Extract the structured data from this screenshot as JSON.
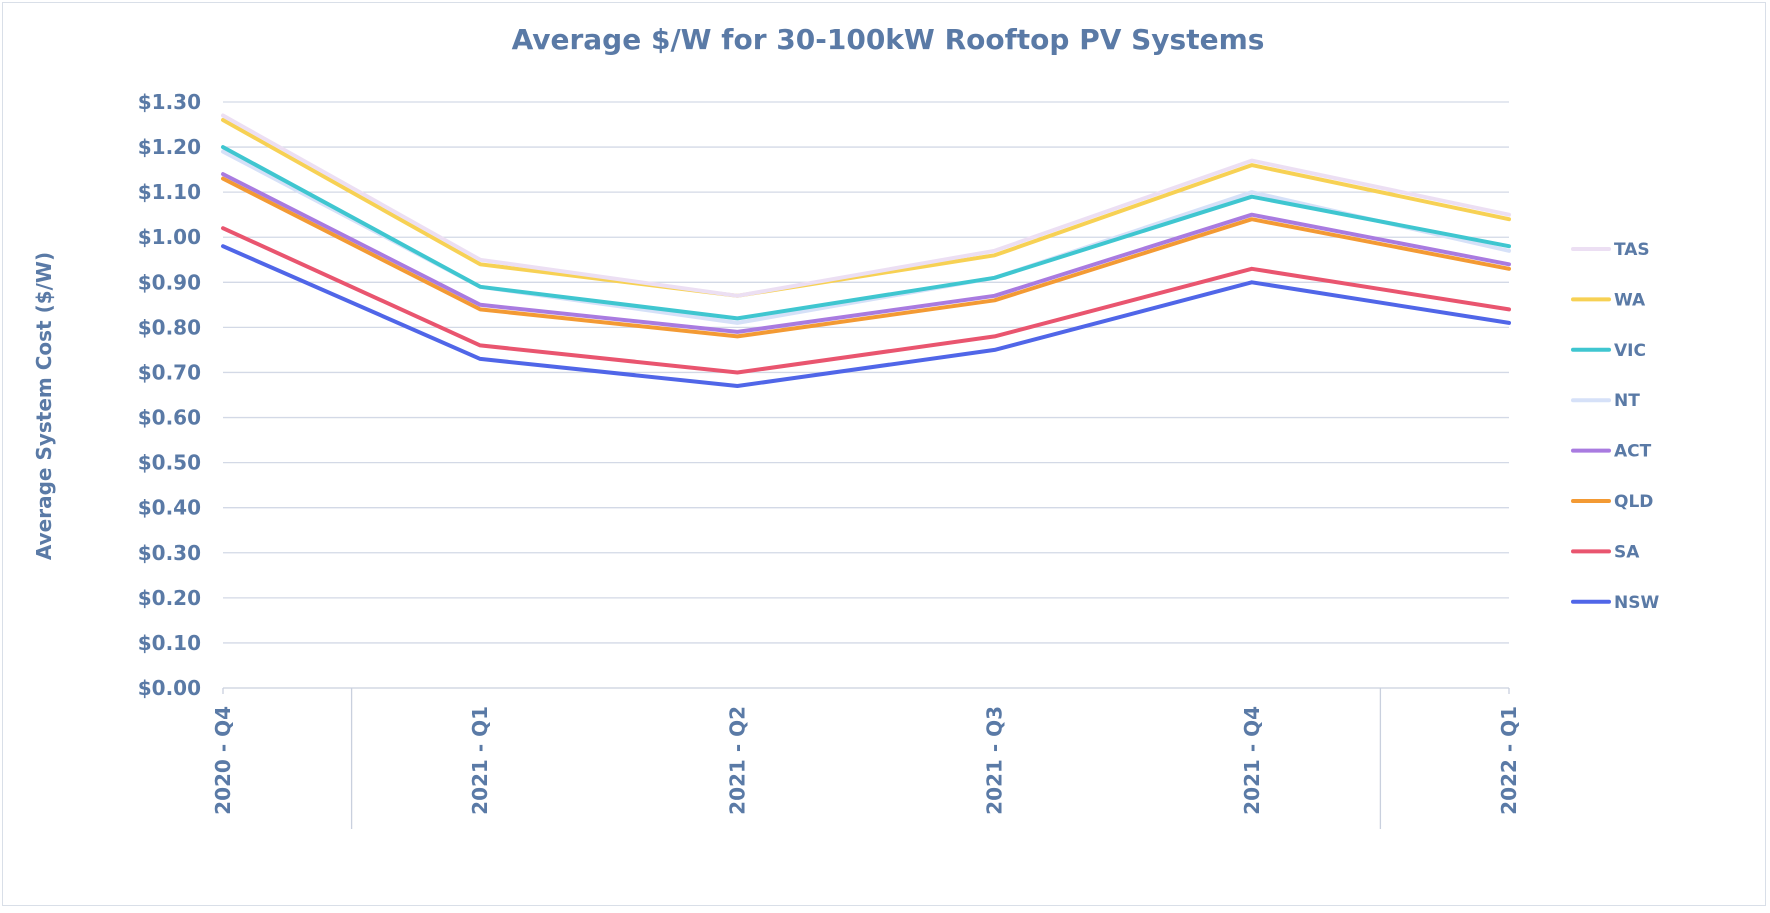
{
  "chart_data": {
    "type": "line",
    "title": "Average $/W for 30-100kW Rooftop PV Systems",
    "ylabel": "Average System Cost ($/W)",
    "xlabel": "",
    "categories": [
      "2020 - Q4",
      "2021 - Q1",
      "2021 - Q2",
      "2021 - Q3",
      "2021 - Q4",
      "2022 - Q1"
    ],
    "ylim": [
      0,
      1.3
    ],
    "yticks": [
      {
        "value": 0.0,
        "label": "$0.00"
      },
      {
        "value": 0.1,
        "label": "$0.10"
      },
      {
        "value": 0.2,
        "label": "$0.20"
      },
      {
        "value": 0.3,
        "label": "$0.30"
      },
      {
        "value": 0.4,
        "label": "$0.40"
      },
      {
        "value": 0.5,
        "label": "$0.50"
      },
      {
        "value": 0.6,
        "label": "$0.60"
      },
      {
        "value": 0.7,
        "label": "$0.70"
      },
      {
        "value": 0.8,
        "label": "$0.80"
      },
      {
        "value": 0.9,
        "label": "$0.90"
      },
      {
        "value": 1.0,
        "label": "$1.00"
      },
      {
        "value": 1.1,
        "label": "$1.10"
      },
      {
        "value": 1.2,
        "label": "$1.20"
      },
      {
        "value": 1.3,
        "label": "$1.30"
      }
    ],
    "grid": true,
    "legend_position": "right",
    "series": [
      {
        "name": "TAS",
        "color": "#ecdff3",
        "values": [
          1.27,
          0.95,
          0.87,
          0.97,
          1.17,
          1.05
        ]
      },
      {
        "name": "WA",
        "color": "#f7d154",
        "values": [
          1.26,
          0.94,
          0.87,
          0.96,
          1.16,
          1.04
        ]
      },
      {
        "name": "VIC",
        "color": "#3fc6d0",
        "values": [
          1.2,
          0.89,
          0.82,
          0.91,
          1.09,
          0.98
        ]
      },
      {
        "name": "NT",
        "color": "#d6e1f8",
        "values": [
          1.19,
          0.89,
          0.81,
          0.91,
          1.1,
          0.97
        ]
      },
      {
        "name": "ACT",
        "color": "#a97be0",
        "values": [
          1.14,
          0.85,
          0.79,
          0.87,
          1.05,
          0.94
        ]
      },
      {
        "name": "QLD",
        "color": "#f39a34",
        "values": [
          1.13,
          0.84,
          0.78,
          0.86,
          1.04,
          0.93
        ]
      },
      {
        "name": "SA",
        "color": "#e9556f",
        "values": [
          1.02,
          0.76,
          0.7,
          0.78,
          0.93,
          0.84
        ]
      },
      {
        "name": "NSW",
        "color": "#5066e8",
        "values": [
          0.98,
          0.73,
          0.67,
          0.75,
          0.9,
          0.81
        ]
      }
    ]
  }
}
